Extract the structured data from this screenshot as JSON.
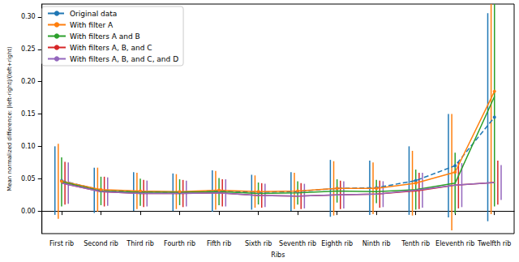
{
  "chart_data": {
    "type": "line",
    "x_label": "Ribs",
    "y_label": "Mean normalized difference: |left-right|/(left+right)",
    "categories": [
      "First rib",
      "Second rib",
      "Third rib",
      "Fourth rib",
      "Fifth rib",
      "Sixth rib",
      "Seventh rib",
      "Eighth rib",
      "Ninth rib",
      "Tenth rib",
      "Eleventh rib",
      "Twelfth rib"
    ],
    "ylim": [
      -0.035,
      0.32
    ],
    "yticks": [
      {
        "value": 0,
        "label": "0.00"
      },
      {
        "value": 0.05,
        "label": "0.05"
      },
      {
        "value": 0.1,
        "label": "0.10"
      },
      {
        "value": 0.15,
        "label": "0.15"
      },
      {
        "value": 0.2,
        "label": "0.20"
      },
      {
        "value": 0.25,
        "label": "0.25"
      },
      {
        "value": 0.3,
        "label": "0.30"
      }
    ],
    "grid": false,
    "legend": "top-left",
    "series": [
      {
        "name": "Original data",
        "color": "#1f77b4",
        "marker": "circle",
        "line_style": "dashed",
        "values": [
          0.047,
          0.032,
          0.03,
          0.029,
          0.031,
          0.029,
          0.03,
          0.035,
          0.036,
          0.047,
          0.07,
          0.145
        ],
        "errors": [
          0.053,
          0.035,
          0.03,
          0.029,
          0.032,
          0.027,
          0.03,
          0.044,
          0.042,
          0.053,
          0.08,
          0.161
        ]
      },
      {
        "name": "With filter A",
        "color": "#ff7f0e",
        "marker": "circle",
        "line_style": "solid",
        "values": [
          0.046,
          0.033,
          0.031,
          0.03,
          0.032,
          0.03,
          0.031,
          0.035,
          0.035,
          0.043,
          0.06,
          0.185
        ],
        "errors": [
          0.058,
          0.034,
          0.028,
          0.027,
          0.03,
          0.025,
          0.028,
          0.042,
          0.04,
          0.05,
          0.09,
          0.19
        ]
      },
      {
        "name": "With filters A and B",
        "color": "#2ca02c",
        "marker": "none",
        "line_style": "solid",
        "values": [
          0.045,
          0.031,
          0.029,
          0.029,
          0.03,
          0.027,
          0.028,
          0.031,
          0.03,
          0.033,
          0.043,
          0.177
        ],
        "errors": [
          0.038,
          0.022,
          0.021,
          0.02,
          0.021,
          0.017,
          0.018,
          0.018,
          0.018,
          0.031,
          0.047,
          0.17
        ]
      },
      {
        "name": "With filters A, B, and C",
        "color": "#d62728",
        "marker": "none",
        "line_style": "solid",
        "values": [
          0.043,
          0.03,
          0.027,
          0.027,
          0.028,
          0.024,
          0.023,
          0.025,
          0.026,
          0.031,
          0.04,
          0.044
        ],
        "errors": [
          0.033,
          0.023,
          0.021,
          0.021,
          0.021,
          0.019,
          0.02,
          0.022,
          0.021,
          0.028,
          0.036,
          0.034
        ]
      },
      {
        "name": "With filters A, B, and C, and D",
        "color": "#9467bd",
        "marker": "none",
        "line_style": "solid",
        "values": [
          0.043,
          0.03,
          0.027,
          0.027,
          0.028,
          0.024,
          0.023,
          0.025,
          0.026,
          0.032,
          0.04,
          0.044
        ],
        "errors": [
          0.032,
          0.022,
          0.02,
          0.02,
          0.021,
          0.018,
          0.019,
          0.021,
          0.02,
          0.027,
          0.034,
          0.027
        ]
      }
    ]
  }
}
